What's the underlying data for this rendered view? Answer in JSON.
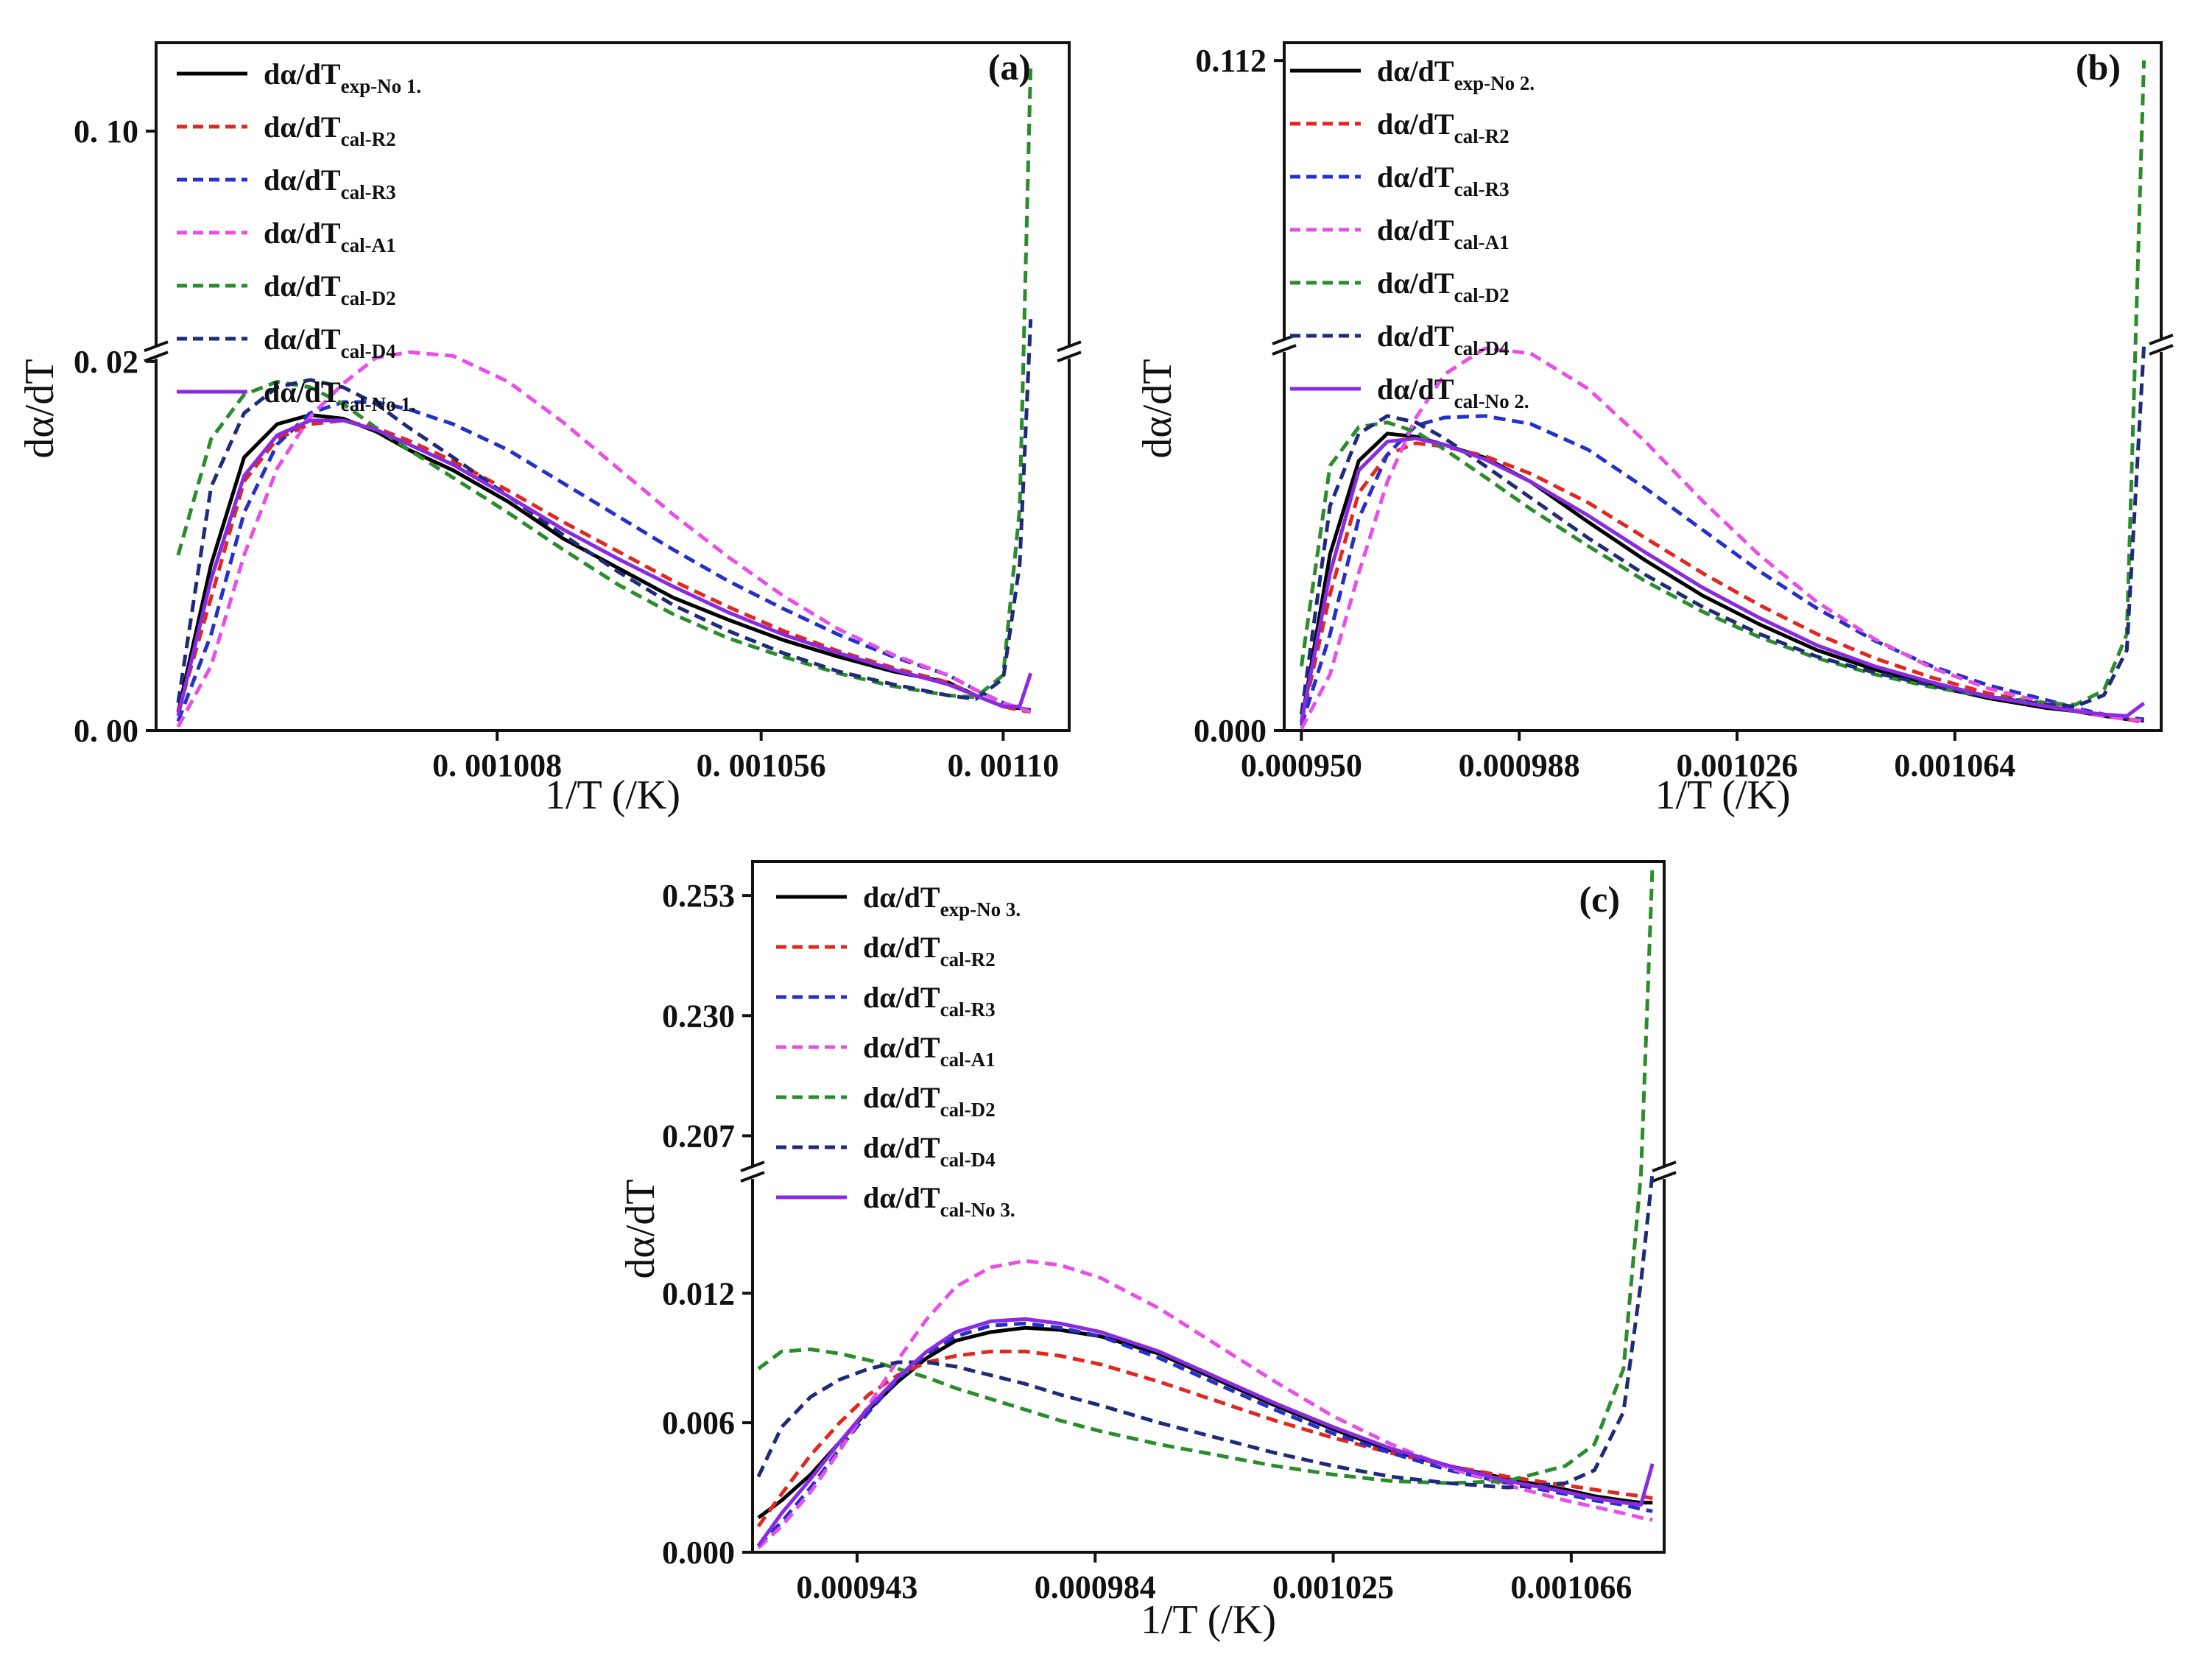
{
  "figure": {
    "description_free": true
  },
  "chart_data": [
    {
      "panel": "(a)",
      "type": "line",
      "title": "",
      "xlabel": "1/T (/K)",
      "ylabel": "dα/dT",
      "xlim": [
        0.000946,
        0.001112
      ],
      "x_ticks": [
        0.001008,
        0.001056,
        0.0011
      ],
      "x_tick_labels": [
        "0. 001008",
        "0. 001056",
        "0. 00110"
      ],
      "y_break": true,
      "y_lower": {
        "range": [
          0.0,
          0.0205
        ],
        "ticks": [
          0.0,
          0.02
        ],
        "tick_labels": [
          "0. 00",
          "0. 02"
        ]
      },
      "y_upper": {
        "range": [
          0.08,
          0.108
        ],
        "ticks": [
          0.1
        ],
        "tick_labels": [
          "0. 10"
        ]
      },
      "legend_position": "top-left",
      "x": [
        0.00095,
        0.000956,
        0.000962,
        0.000968,
        0.000974,
        0.00098,
        0.000986,
        0.000992,
        0.001,
        0.00101,
        0.00102,
        0.00103,
        0.00104,
        0.00105,
        0.00106,
        0.00107,
        0.00108,
        0.00109,
        0.001095,
        0.0011,
        0.001103,
        0.001105
      ],
      "series": [
        {
          "name": "dα/dT",
          "sub": "exp-No 1.",
          "color": "#000000",
          "style": "solid",
          "values": [
            0.001,
            0.009,
            0.0148,
            0.0166,
            0.0171,
            0.0169,
            0.0162,
            0.0152,
            0.0141,
            0.0124,
            0.0104,
            0.0088,
            0.0072,
            0.006,
            0.0049,
            0.004,
            0.0032,
            0.0026,
            0.0019,
            0.0013,
            0.0012,
            0.0011
          ]
        },
        {
          "name": "dα/dT",
          "sub": "cal-R2",
          "color": "#e0281e",
          "style": "dashed",
          "values": [
            0.001,
            0.0072,
            0.0135,
            0.0158,
            0.0166,
            0.0168,
            0.0164,
            0.0157,
            0.0146,
            0.013,
            0.0113,
            0.0097,
            0.0081,
            0.0067,
            0.0054,
            0.0043,
            0.0034,
            0.0026,
            0.0019,
            0.0013,
            0.0011,
            0.001
          ]
        },
        {
          "name": "dα/dT",
          "sub": "cal-R3",
          "color": "#2430c8",
          "style": "dashed",
          "values": [
            0.0005,
            0.0052,
            0.0118,
            0.0155,
            0.0172,
            0.0178,
            0.0178,
            0.0174,
            0.0166,
            0.0152,
            0.0134,
            0.0116,
            0.0098,
            0.0081,
            0.0066,
            0.0052,
            0.004,
            0.003,
            0.0022,
            0.0015,
            0.0012,
            0.0011
          ]
        },
        {
          "name": "dα/dT",
          "sub": "cal-A1",
          "color": "#e84fe6",
          "style": "dashed",
          "values": [
            0.0002,
            0.0035,
            0.0095,
            0.0142,
            0.017,
            0.0188,
            0.0202,
            0.0207,
            0.0203,
            0.0189,
            0.0167,
            0.0142,
            0.0117,
            0.0094,
            0.0073,
            0.0055,
            0.0041,
            0.003,
            0.0022,
            0.0015,
            0.0012,
            0.001
          ]
        },
        {
          "name": "dα/dT",
          "sub": "cal-D2",
          "color": "#2b8c2b",
          "style": "dashed",
          "values": [
            0.0095,
            0.0158,
            0.0182,
            0.0189,
            0.0186,
            0.0177,
            0.0164,
            0.0152,
            0.0137,
            0.0118,
            0.0098,
            0.0079,
            0.0063,
            0.005,
            0.004,
            0.0031,
            0.0024,
            0.0019,
            0.0018,
            0.003,
            0.012,
            0.106
          ]
        },
        {
          "name": "dα/dT",
          "sub": "cal-D4",
          "color": "#1f2a7a",
          "style": "dashed",
          "values": [
            0.0015,
            0.0132,
            0.0172,
            0.0186,
            0.019,
            0.0186,
            0.0177,
            0.0164,
            0.0148,
            0.0127,
            0.0106,
            0.0086,
            0.0068,
            0.0054,
            0.0042,
            0.0032,
            0.0025,
            0.0019,
            0.0017,
            0.0028,
            0.009,
            0.083
          ]
        },
        {
          "name": "dα/dT",
          "sub": "cal-No 1.",
          "color": "#8a2be2",
          "style": "solid",
          "values": [
            0.0008,
            0.0082,
            0.0138,
            0.016,
            0.0168,
            0.0168,
            0.0163,
            0.0155,
            0.0144,
            0.0127,
            0.0109,
            0.0093,
            0.0078,
            0.0064,
            0.0052,
            0.0042,
            0.0033,
            0.0025,
            0.0019,
            0.0013,
            0.0013,
            0.0031
          ]
        }
      ]
    },
    {
      "panel": "(b)",
      "type": "line",
      "title": "",
      "xlabel": "1/T (/K)",
      "ylabel": "dα/dT",
      "xlim": [
        0.000947,
        0.0011
      ],
      "x_ticks": [
        0.00095,
        0.000988,
        0.001026,
        0.001064
      ],
      "x_tick_labels": [
        "0.000950",
        "0.000988",
        "0.001026",
        "0.001064"
      ],
      "y_break": true,
      "y_lower": {
        "range": [
          0.0,
          0.024
        ],
        "ticks": [
          0.0
        ],
        "tick_labels": [
          "0.000"
        ]
      },
      "y_upper": {
        "range": [
          0.08,
          0.114
        ],
        "ticks": [
          0.112
        ],
        "tick_labels": [
          "0.112"
        ]
      },
      "legend_position": "top-left",
      "x": [
        0.00095,
        0.000955,
        0.00096,
        0.000965,
        0.00097,
        0.000975,
        0.000982,
        0.00099,
        0.001,
        0.00101,
        0.00102,
        0.00103,
        0.00104,
        0.00105,
        0.00106,
        0.00107,
        0.00108,
        0.001085,
        0.00109,
        0.001094,
        0.001097
      ],
      "series": [
        {
          "name": "dα/dT",
          "sub": "exp-No 2.",
          "color": "#000000",
          "style": "solid",
          "values": [
            0.0005,
            0.011,
            0.0168,
            0.0185,
            0.0183,
            0.0178,
            0.017,
            0.0155,
            0.013,
            0.0106,
            0.0084,
            0.0066,
            0.005,
            0.0038,
            0.0028,
            0.002,
            0.0014,
            0.0012,
            0.0009,
            0.0007,
            0.0006
          ]
        },
        {
          "name": "dα/dT",
          "sub": "cal-R2",
          "color": "#e0281e",
          "style": "dashed",
          "values": [
            0.0005,
            0.0085,
            0.0148,
            0.0172,
            0.0179,
            0.0177,
            0.0171,
            0.016,
            0.0142,
            0.012,
            0.0098,
            0.0078,
            0.006,
            0.0045,
            0.0033,
            0.0023,
            0.0016,
            0.0012,
            0.0009,
            0.0007,
            0.0005
          ]
        },
        {
          "name": "dα/dT",
          "sub": "cal-R3",
          "color": "#2430c8",
          "style": "dashed",
          "values": [
            0.0003,
            0.006,
            0.0132,
            0.0172,
            0.019,
            0.0195,
            0.0196,
            0.0191,
            0.0175,
            0.0151,
            0.0125,
            0.0099,
            0.0076,
            0.0056,
            0.004,
            0.0028,
            0.0019,
            0.0014,
            0.001,
            0.0008,
            0.0007
          ]
        },
        {
          "name": "dα/dT",
          "sub": "cal-A1",
          "color": "#e84fe6",
          "style": "dashed",
          "values": [
            0.0001,
            0.0035,
            0.0098,
            0.0155,
            0.0195,
            0.0222,
            0.0238,
            0.0235,
            0.0213,
            0.018,
            0.0143,
            0.0109,
            0.008,
            0.0057,
            0.0039,
            0.0026,
            0.0017,
            0.0013,
            0.0009,
            0.0007,
            0.0006
          ]
        },
        {
          "name": "dα/dT",
          "sub": "cal-D2",
          "color": "#2b8c2b",
          "style": "dashed",
          "values": [
            0.004,
            0.0165,
            0.0189,
            0.0192,
            0.0186,
            0.0175,
            0.0158,
            0.0138,
            0.0115,
            0.0093,
            0.0074,
            0.0058,
            0.0045,
            0.0035,
            0.0027,
            0.0021,
            0.0017,
            0.0016,
            0.0025,
            0.006,
            0.112
          ]
        },
        {
          "name": "dα/dT",
          "sub": "cal-D4",
          "color": "#1f2a7a",
          "style": "dashed",
          "values": [
            0.001,
            0.014,
            0.0185,
            0.0196,
            0.0192,
            0.0182,
            0.0165,
            0.0145,
            0.012,
            0.0097,
            0.0077,
            0.006,
            0.0046,
            0.0036,
            0.0028,
            0.0021,
            0.0016,
            0.0015,
            0.0022,
            0.005,
            0.024
          ]
        },
        {
          "name": "dα/dT",
          "sub": "cal-No 2.",
          "color": "#8a2be2",
          "style": "solid",
          "values": [
            0.0005,
            0.0098,
            0.0162,
            0.018,
            0.0182,
            0.0178,
            0.0169,
            0.0155,
            0.0134,
            0.0111,
            0.0089,
            0.007,
            0.0053,
            0.004,
            0.003,
            0.0021,
            0.0015,
            0.0012,
            0.001,
            0.0009,
            0.0017
          ]
        }
      ]
    },
    {
      "panel": "(c)",
      "type": "line",
      "title": "",
      "xlabel": "1/T (/K)",
      "ylabel": "dα/dT",
      "xlim": [
        0.000925,
        0.001082
      ],
      "x_ticks": [
        0.000943,
        0.000984,
        0.001025,
        0.001066
      ],
      "x_tick_labels": [
        "0.000943",
        "0.000984",
        "0.001025",
        "0.001066"
      ],
      "y_break": true,
      "y_lower": {
        "range": [
          0.0,
          0.0176
        ],
        "ticks": [
          0.0,
          0.006,
          0.012
        ],
        "tick_labels": [
          "0.000",
          "0.006",
          "0.012"
        ]
      },
      "y_upper": {
        "range": [
          0.2,
          0.2595
        ],
        "ticks": [
          0.207,
          0.23,
          0.253
        ],
        "tick_labels": [
          "0.207",
          "0.230",
          "0.253"
        ]
      },
      "legend_position": "top-left",
      "x": [
        0.000926,
        0.00093,
        0.000935,
        0.00094,
        0.000945,
        0.00095,
        0.000955,
        0.00096,
        0.000966,
        0.000972,
        0.000978,
        0.000985,
        0.000995,
        0.001005,
        0.001015,
        0.001025,
        0.001035,
        0.001045,
        0.001055,
        0.001065,
        0.00107,
        0.001075,
        0.001078,
        0.00108
      ],
      "series": [
        {
          "name": "dα/dT",
          "sub": "exp-No 3.",
          "color": "#000000",
          "style": "solid",
          "values": [
            0.0016,
            0.0024,
            0.0036,
            0.0051,
            0.0066,
            0.0079,
            0.009,
            0.0098,
            0.0102,
            0.0104,
            0.0103,
            0.01,
            0.0092,
            0.008,
            0.0068,
            0.0057,
            0.0047,
            0.004,
            0.0034,
            0.0029,
            0.0026,
            0.0024,
            0.0023,
            0.0023
          ]
        },
        {
          "name": "dα/dT",
          "sub": "cal-R2",
          "color": "#e0281e",
          "style": "dashed",
          "values": [
            0.0012,
            0.0027,
            0.0045,
            0.006,
            0.0073,
            0.0082,
            0.0088,
            0.0091,
            0.0093,
            0.0093,
            0.0091,
            0.0087,
            0.0079,
            0.007,
            0.0061,
            0.0053,
            0.0046,
            0.004,
            0.0035,
            0.0031,
            0.0029,
            0.0027,
            0.0026,
            0.0025
          ]
        },
        {
          "name": "dα/dT",
          "sub": "cal-R3",
          "color": "#2430c8",
          "style": "dashed",
          "values": [
            0.0003,
            0.0014,
            0.003,
            0.0048,
            0.0065,
            0.008,
            0.0092,
            0.01,
            0.0105,
            0.0106,
            0.0104,
            0.01,
            0.009,
            0.0078,
            0.0066,
            0.0055,
            0.0046,
            0.0038,
            0.0032,
            0.0027,
            0.0024,
            0.0022,
            0.002,
            0.0019
          ]
        },
        {
          "name": "dα/dT",
          "sub": "cal-A1",
          "color": "#e84fe6",
          "style": "dashed",
          "values": [
            0.0002,
            0.0012,
            0.0028,
            0.0047,
            0.0068,
            0.0089,
            0.0108,
            0.0123,
            0.0132,
            0.0135,
            0.0133,
            0.0127,
            0.0113,
            0.0096,
            0.0079,
            0.0063,
            0.005,
            0.0039,
            0.0031,
            0.0024,
            0.0021,
            0.0018,
            0.0016,
            0.0015
          ]
        },
        {
          "name": "dα/dT",
          "sub": "cal-D2",
          "color": "#2b8c2b",
          "style": "dashed",
          "values": [
            0.0085,
            0.0093,
            0.0094,
            0.0092,
            0.0089,
            0.0085,
            0.0081,
            0.0076,
            0.0071,
            0.0066,
            0.0061,
            0.0056,
            0.005,
            0.0045,
            0.004,
            0.0036,
            0.0033,
            0.0032,
            0.0033,
            0.004,
            0.005,
            0.0085,
            0.0175,
            0.259
          ]
        },
        {
          "name": "dα/dT",
          "sub": "cal-D4",
          "color": "#1f2a7a",
          "style": "dashed",
          "values": [
            0.0035,
            0.0058,
            0.0072,
            0.008,
            0.0085,
            0.0088,
            0.0088,
            0.0086,
            0.0082,
            0.0078,
            0.0073,
            0.0068,
            0.006,
            0.0053,
            0.0046,
            0.004,
            0.0035,
            0.0032,
            0.003,
            0.0032,
            0.0038,
            0.0065,
            0.0125,
            0.2
          ]
        },
        {
          "name": "dα/dT",
          "sub": "cal-No 3.",
          "color": "#8a2be2",
          "style": "solid",
          "values": [
            0.0003,
            0.0018,
            0.0034,
            0.0051,
            0.0067,
            0.0081,
            0.0093,
            0.0102,
            0.0107,
            0.0108,
            0.0106,
            0.0102,
            0.0093,
            0.0081,
            0.0069,
            0.0058,
            0.0048,
            0.004,
            0.0033,
            0.0028,
            0.0025,
            0.0023,
            0.0022,
            0.0041
          ]
        }
      ]
    }
  ]
}
